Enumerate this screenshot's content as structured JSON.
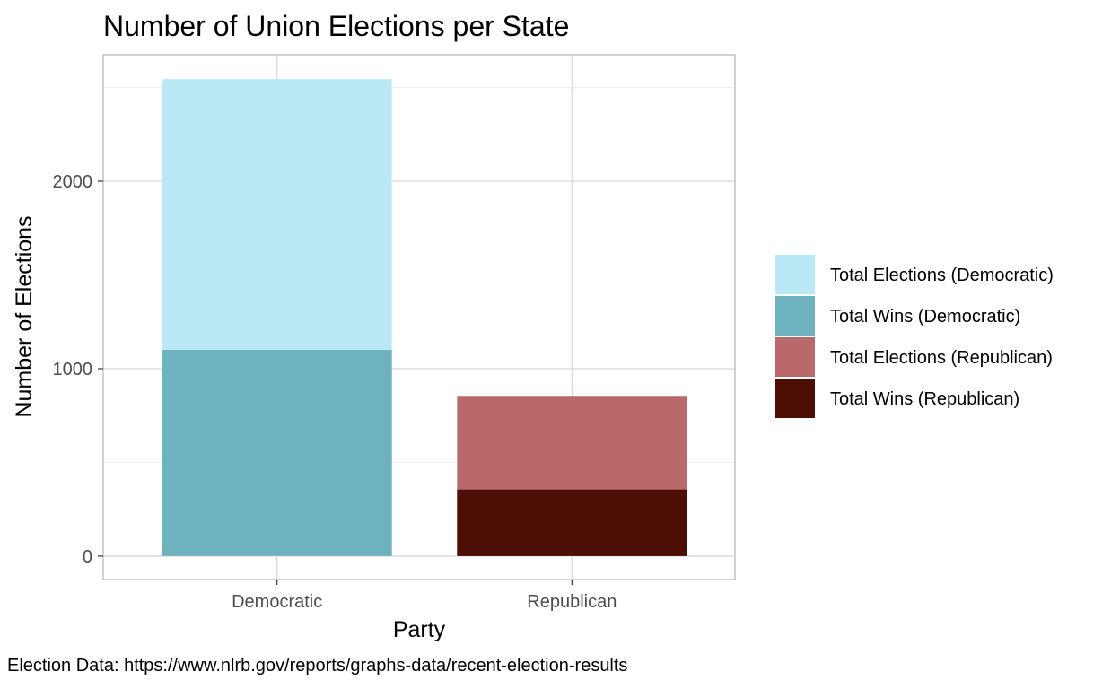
{
  "chart_data": {
    "type": "bar",
    "stacked": "overlapping",
    "title": "Number of Union Elections per State",
    "xlabel": "Party",
    "ylabel": "Number of Elections",
    "caption": "Election Data: https://www.nlrb.gov/reports/graphs-data/recent-election-results",
    "categories": [
      "Democratic",
      "Republican"
    ],
    "ylim": [
      -125,
      2675
    ],
    "yticks": [
      0,
      1000,
      2000
    ],
    "grid": true,
    "legend_position": "right",
    "series": [
      {
        "name": "Total Elections (Democratic)",
        "color": "#b9e9f5",
        "category": "Democratic",
        "value": 2545
      },
      {
        "name": "Total Wins (Democratic)",
        "color": "#6eb1bf",
        "category": "Democratic",
        "value": 1100
      },
      {
        "name": "Total Elections (Republican)",
        "color": "#b9696a",
        "category": "Republican",
        "value": 855
      },
      {
        "name": "Total Wins (Republican)",
        "color": "#4d0e05",
        "category": "Republican",
        "value": 355
      }
    ]
  }
}
